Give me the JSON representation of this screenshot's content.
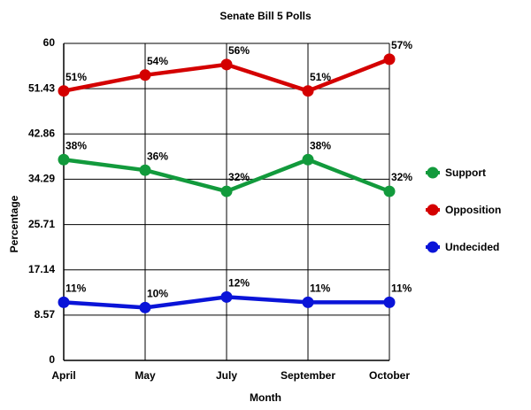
{
  "chart_data": {
    "type": "line",
    "title": "Senate Bill 5 Polls",
    "x_label": "Month",
    "y_label": "Percentage",
    "categories": [
      "April",
      "May",
      "July",
      "September",
      "October"
    ],
    "series": [
      {
        "name": "Support",
        "color": "#129a3c",
        "values": [
          38,
          36,
          32,
          38,
          32
        ],
        "value_labels": [
          "38%",
          "36%",
          "32%",
          "38%",
          "32%"
        ]
      },
      {
        "name": "Opposition",
        "color": "#d40000",
        "values": [
          51,
          54,
          56,
          51,
          57
        ],
        "value_labels": [
          "51%",
          "54%",
          "56%",
          "51%",
          "57%"
        ]
      },
      {
        "name": "Undecided",
        "color": "#0a14d8",
        "values": [
          11,
          10,
          12,
          11,
          11
        ],
        "value_labels": [
          "11%",
          "10%",
          "12%",
          "11%",
          "11%"
        ]
      }
    ],
    "ylim": [
      0,
      60
    ],
    "yticks": [
      0,
      8.57,
      17.14,
      25.71,
      34.29,
      42.86,
      51.43,
      60
    ],
    "grid": true,
    "legend": "right"
  }
}
